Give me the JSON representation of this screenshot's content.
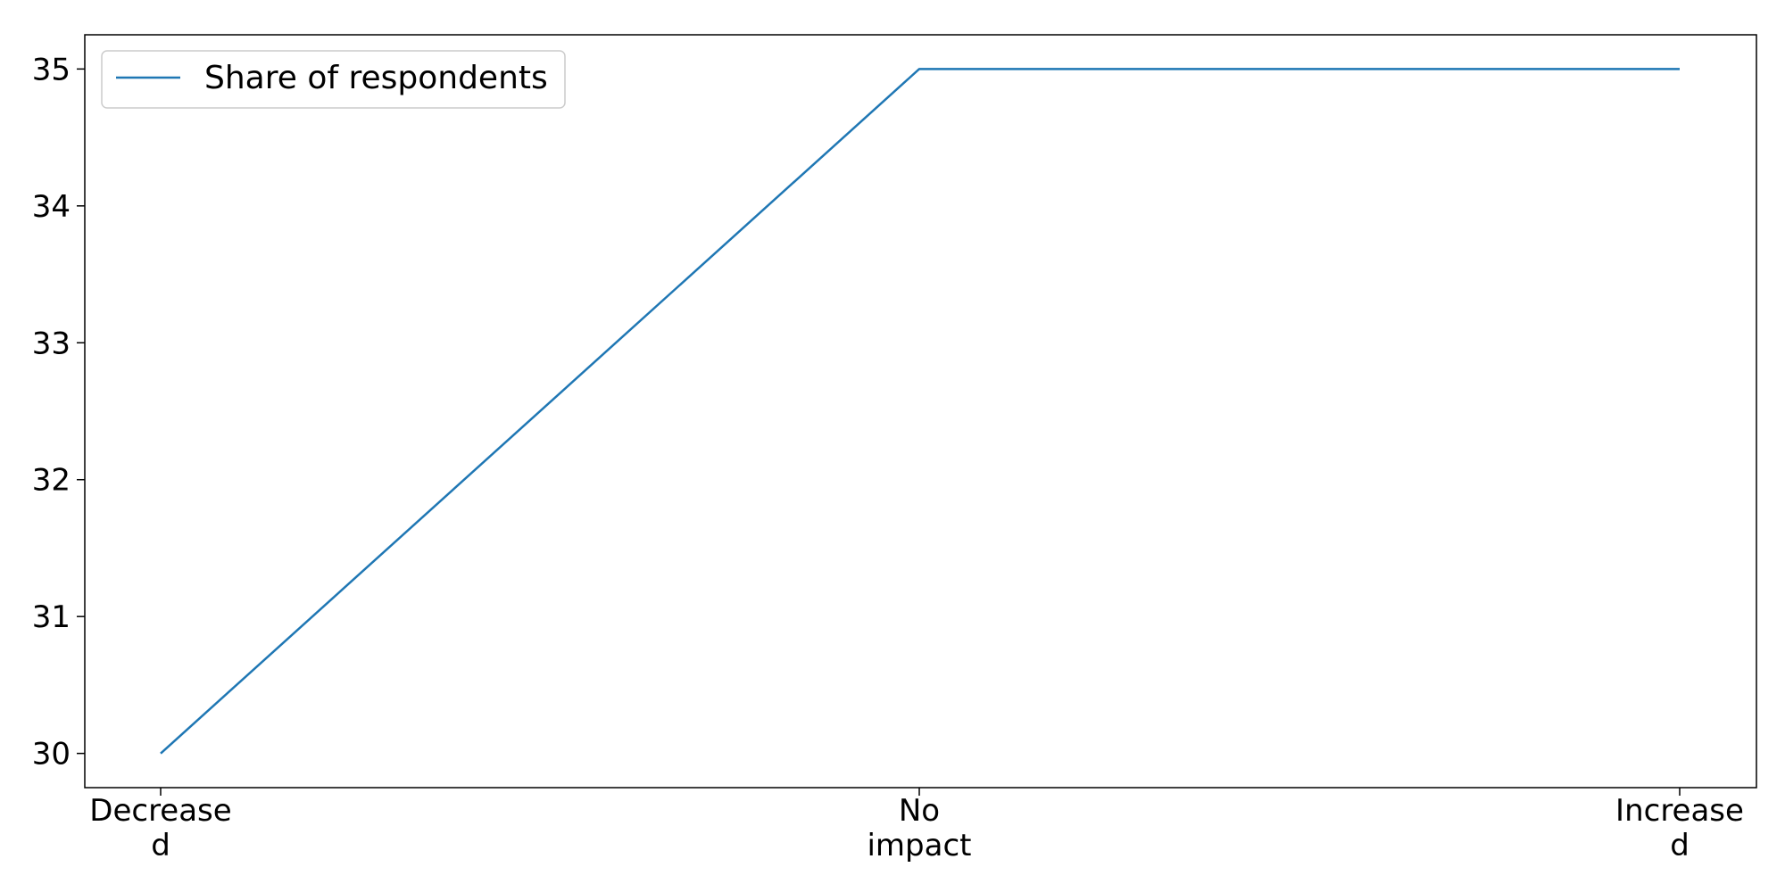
{
  "chart_data": {
    "type": "line",
    "categories": [
      "Decreased",
      "No impact",
      "Increased"
    ],
    "category_labels": [
      [
        "Decrease",
        "d"
      ],
      [
        "No",
        "impact"
      ],
      [
        "Increase",
        "d"
      ]
    ],
    "series": [
      {
        "name": "Share of respondents",
        "values": [
          30,
          35,
          35
        ],
        "color": "#1f77b4"
      }
    ],
    "yticks": [
      30,
      31,
      32,
      33,
      34,
      35
    ],
    "ylim": [
      29.75,
      35.25
    ],
    "grid": false,
    "legend_position": "top-left"
  }
}
